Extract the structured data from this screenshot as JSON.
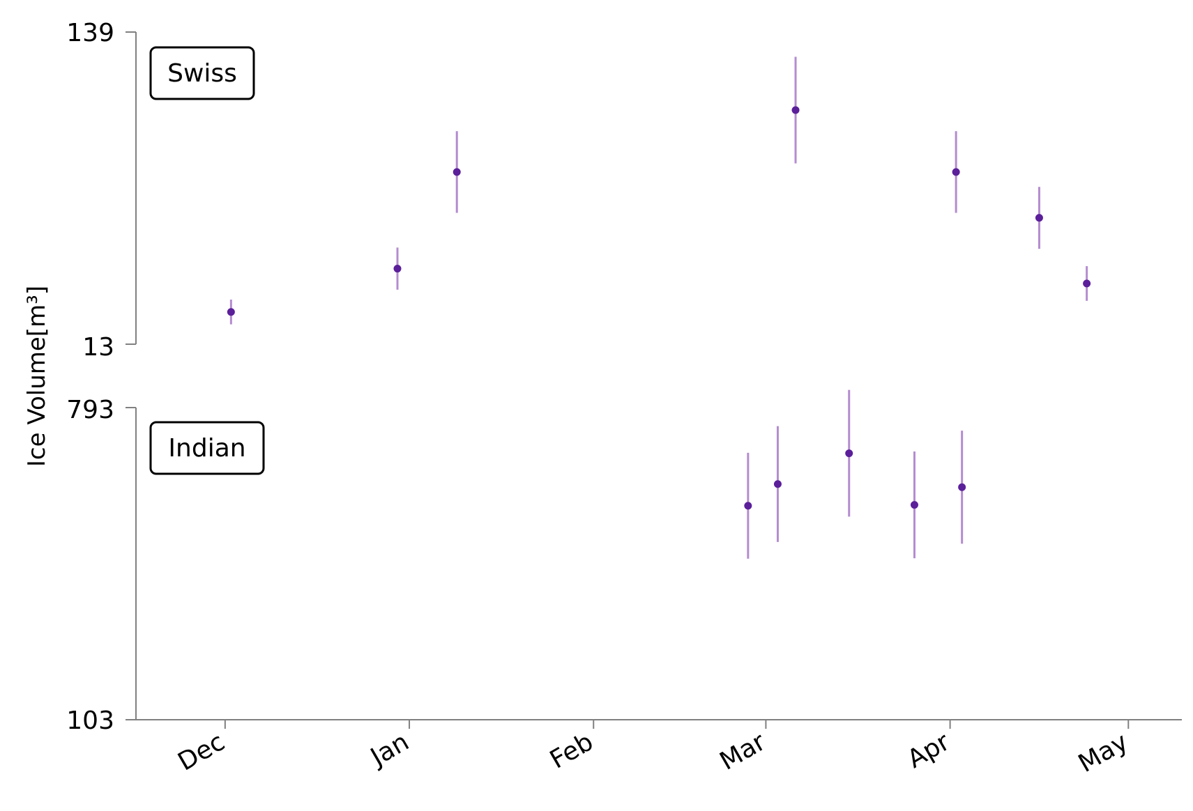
{
  "chart_data": {
    "type": "scatter",
    "ylabel": "Ice Volume[m³]",
    "x_ticks": [
      {
        "label": "Dec",
        "date": "2023-12-01"
      },
      {
        "label": "Jan",
        "date": "2024-01-01"
      },
      {
        "label": "Feb",
        "date": "2024-02-01"
      },
      {
        "label": "Mar",
        "date": "2024-03-01"
      },
      {
        "label": "Apr",
        "date": "2024-04-01"
      },
      {
        "label": "May",
        "date": "2024-05-01"
      }
    ],
    "xlim": [
      "2023-11-16",
      "2024-05-10"
    ],
    "colors": {
      "point": "#5b1f9a",
      "errorbar": "#b48ccf",
      "axis": "#808080"
    },
    "panels": [
      {
        "name": "Swiss",
        "ylim": [
          13,
          139
        ],
        "yticks": [
          "139",
          "13"
        ],
        "points": [
          {
            "x": "2023-12-02",
            "y": 26,
            "err": 5
          },
          {
            "x": "2023-12-30",
            "y": 43.5,
            "err": 8.5
          },
          {
            "x": "2024-01-09",
            "y": 82.5,
            "err": 16.5
          },
          {
            "x": "2024-03-06",
            "y": 107.5,
            "err": 21.5
          },
          {
            "x": "2024-04-02",
            "y": 82.5,
            "err": 16.5
          },
          {
            "x": "2024-04-16",
            "y": 64,
            "err": 12.5
          },
          {
            "x": "2024-04-24",
            "y": 37.5,
            "err": 7
          }
        ]
      },
      {
        "name": "Indian",
        "ylim": [
          103,
          793
        ],
        "yticks": [
          "793",
          "103"
        ],
        "points": [
          {
            "x": "2024-02-27",
            "y": 576,
            "err": 117
          },
          {
            "x": "2024-03-03",
            "y": 624,
            "err": 128
          },
          {
            "x": "2024-03-15",
            "y": 692,
            "err": 140
          },
          {
            "x": "2024-03-26",
            "y": 578,
            "err": 118
          },
          {
            "x": "2024-04-03",
            "y": 617,
            "err": 125
          }
        ]
      }
    ]
  }
}
